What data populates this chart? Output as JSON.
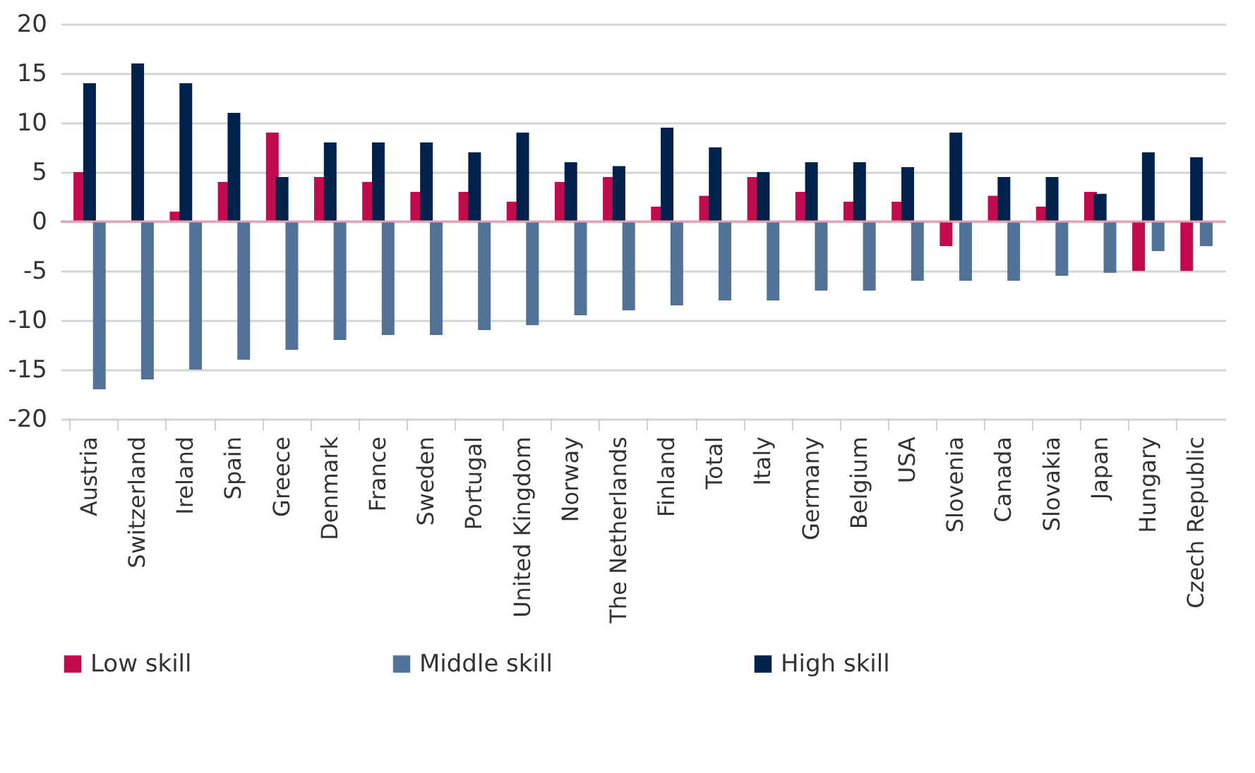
{
  "chart_data": {
    "type": "bar",
    "categories": [
      "Austria",
      "Switzerland",
      "Ireland",
      "Spain",
      "Greece",
      "Denmark",
      "France",
      "Sweden",
      "Portugal",
      "United Kingdom",
      "Norway",
      "The Netherlands",
      "Finland",
      "Total",
      "Italy",
      "Germany",
      "Belgium",
      "USA",
      "Slovenia",
      "Canada",
      "Slovakia",
      "Japan",
      "Hungary",
      "Czech Republic"
    ],
    "series": [
      {
        "name": "Low skill",
        "color": "#c20a4e",
        "values": [
          5,
          0,
          1,
          4,
          9,
          4.5,
          4,
          3,
          3,
          2,
          4,
          4.5,
          1.5,
          2.6,
          4.5,
          3,
          2,
          2,
          -2.5,
          2.6,
          1.5,
          3,
          -5,
          -5
        ]
      },
      {
        "name": "Middle skill",
        "color": "#527298",
        "values": [
          -17,
          -16,
          -15,
          -14,
          -13,
          -12,
          -11.5,
          -11.5,
          -11,
          -10.5,
          -9.5,
          -9,
          -8.5,
          -8,
          -8,
          -7,
          -7,
          -6,
          -6,
          -6,
          -5.5,
          -5.2,
          -3,
          -2.5
        ]
      },
      {
        "name": "High skill",
        "color": "#00234d",
        "values": [
          14,
          16,
          14,
          11,
          4.5,
          8,
          8,
          8,
          7,
          9,
          6,
          5.6,
          9.5,
          7.5,
          5,
          6,
          6,
          5.5,
          9,
          4.5,
          4.5,
          2.8,
          7,
          6.5
        ]
      }
    ],
    "ylim": [
      -20,
      20
    ],
    "yticks": [
      -20,
      -15,
      -10,
      -5,
      0,
      5,
      10,
      15,
      20
    ],
    "grid": "y",
    "legend": "bottom",
    "ref_lines": [
      {
        "axis": "y",
        "value": 0,
        "color": "#e0a0b4"
      }
    ]
  }
}
